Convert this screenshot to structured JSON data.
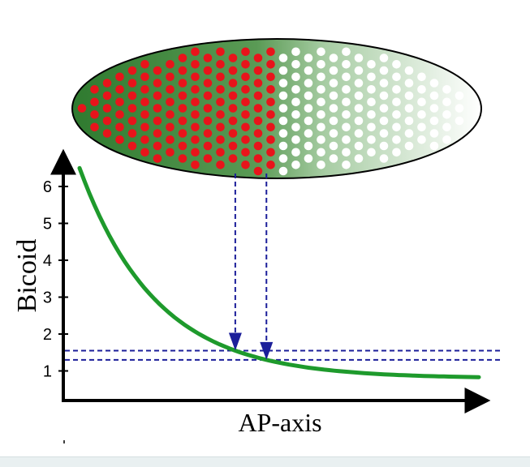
{
  "diagram": {
    "y_axis_label": "Bicoid",
    "x_axis_label": "AP-axis",
    "y_ticks": [
      "1",
      "2",
      "3",
      "4",
      "5",
      "6"
    ],
    "curve": {
      "y_start": 6.5,
      "y_end": 0.8,
      "decay_rate": 5.2
    },
    "thresholds": [
      1.55,
      1.3
    ],
    "embryo": {
      "gradient_dark": "#2f7a2f",
      "gradient_light": "#ffffff",
      "nucleus_on_color": "#e8141b",
      "nucleus_off_color": "#ffffff",
      "boundary_fraction": 0.48
    },
    "colors": {
      "curve": "#1e9a2c",
      "threshold_lines": "#1c1f9a",
      "axes": "#000000"
    }
  }
}
